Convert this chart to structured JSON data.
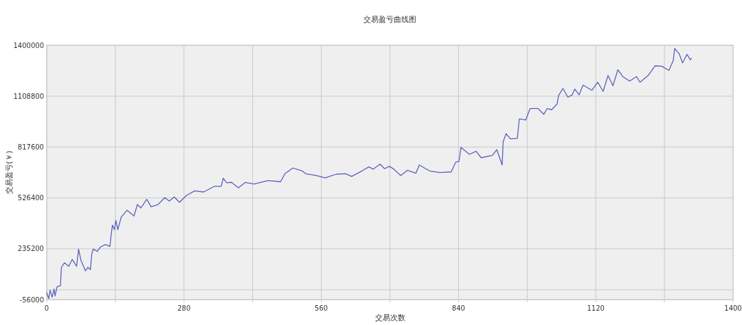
{
  "chart_data": {
    "type": "line",
    "title": "交易盈亏曲线图",
    "xlabel": "交易次数",
    "ylabel": "交易盈亏(￥)",
    "xlim": [
      0,
      1400
    ],
    "xticks": [
      0,
      {
        "value": 140,
        "label": null
      },
      280,
      {
        "value": 420,
        "label": null
      },
      560,
      {
        "value": 700,
        "label": null
      },
      840,
      {
        "value": 980,
        "label": null
      },
      1120,
      {
        "value": 1260,
        "label": null
      },
      1400
    ],
    "ylim": [
      -56000,
      1400000
    ],
    "yticks": [
      -56000,
      {
        "value": 0,
        "label": null
      },
      235200,
      526400,
      817600,
      1108800,
      1400000
    ],
    "grid": true,
    "marker": "none",
    "line_style": "solid",
    "series": [
      {
        "color": "#5a5fc0",
        "x": [
          0,
          4,
          7,
          11,
          15,
          17,
          21,
          28,
          30,
          36,
          45,
          52,
          61,
          65,
          70,
          79,
          84,
          89,
          92,
          95,
          103,
          110,
          120,
          129,
          131,
          134,
          138,
          141,
          145,
          152,
          164,
          178,
          185,
          192,
          204,
          213,
          227,
          241,
          250,
          260,
          271,
          285,
          302,
          320,
          342,
          356,
          360,
          367,
          377,
          391,
          405,
          423,
          451,
          477,
          486,
          502,
          521,
          528,
          549,
          568,
          591,
          610,
          622,
          643,
          657,
          666,
          680,
          689,
          699,
          708,
          722,
          736,
          753,
          760,
          781,
          802,
          825,
          834,
          841,
          845,
          862,
          876,
          886,
          909,
          918,
          929,
          931,
          937,
          946,
          960,
          964,
          977,
          986,
          1002,
          1014,
          1021,
          1030,
          1041,
          1044,
          1053,
          1063,
          1072,
          1077,
          1086,
          1094,
          1112,
          1124,
          1135,
          1145,
          1155,
          1165,
          1175,
          1189,
          1203,
          1210,
          1227,
          1241,
          1255,
          1269,
          1278,
          1281,
          1290,
          1297,
          1306,
          1313,
          1315
        ],
        "values": [
          -15600,
          -50000,
          -2300,
          -41500,
          4000,
          -35000,
          17500,
          23700,
          128500,
          154700,
          135000,
          174400,
          135000,
          233200,
          167700,
          108800,
          128500,
          115400,
          207000,
          233200,
          220000,
          246200,
          259100,
          249000,
          305000,
          370600,
          344300,
          396500,
          344300,
          416200,
          455400,
          422800,
          488300,
          468700,
          518200,
          475000,
          488300,
          527600,
          508000,
          531500,
          501300,
          540500,
          566800,
          560200,
          592700,
          592700,
          638600,
          612500,
          615000,
          583700,
          615000,
          606100,
          625700,
          619000,
          664900,
          697500,
          680600,
          664900,
          654400,
          641400,
          662200,
          664900,
          649200,
          680600,
          704100,
          691000,
          719800,
          693600,
          706700,
          691000,
          654400,
          684500,
          667300,
          714400,
          680600,
          671200,
          675000,
          730100,
          736700,
          815200,
          776000,
          792800,
          756400,
          769400,
          802300,
          714400,
          847800,
          893700,
          863500,
          867500,
          978900,
          972200,
          1037800,
          1037800,
          1004800,
          1037800,
          1031100,
          1063700,
          1112300,
          1152800,
          1102900,
          1116200,
          1148800,
          1116200,
          1172400,
          1142200,
          1188100,
          1135900,
          1227300,
          1168500,
          1259900,
          1220700,
          1194800,
          1220700,
          1188100,
          1227300,
          1282300,
          1279600,
          1255900,
          1312400,
          1381600,
          1351700,
          1299100,
          1347800,
          1316400,
          1325400
        ]
      }
    ]
  }
}
